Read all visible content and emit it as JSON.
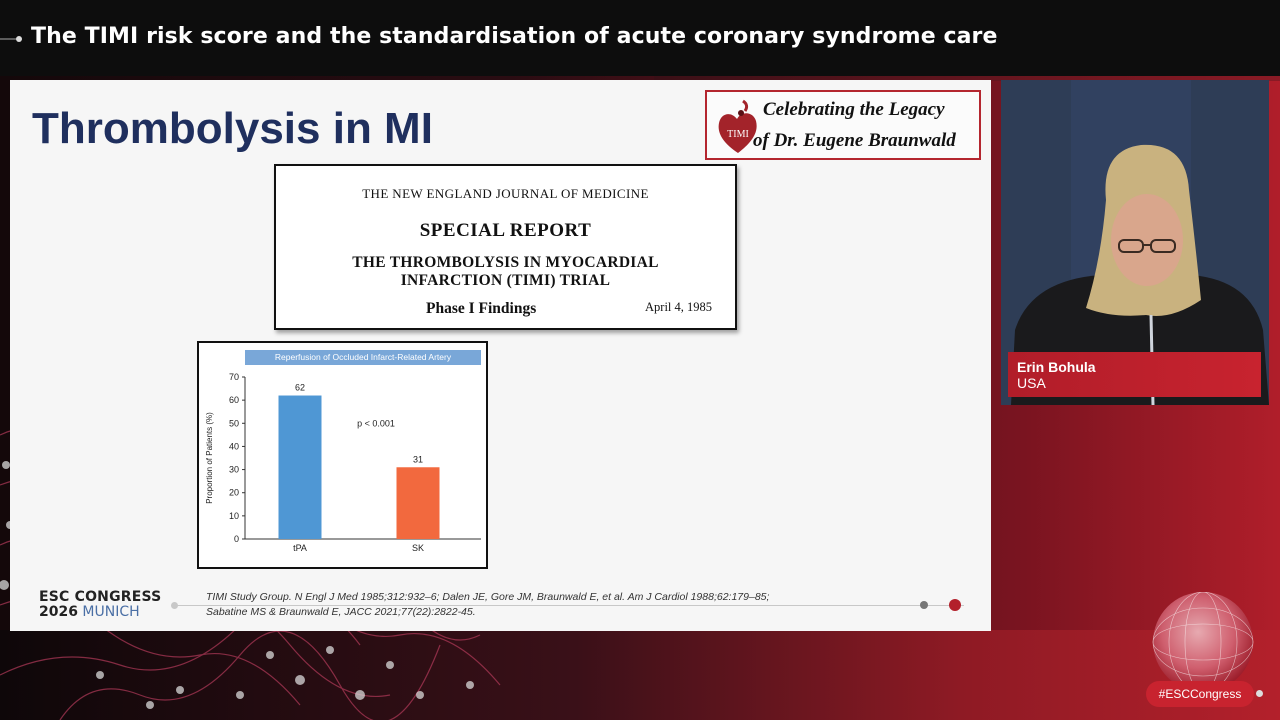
{
  "header": {
    "title": "The TIMI risk score and the standardisation of acute coronary syndrome care"
  },
  "slide": {
    "title": "Thrombolysis in MI",
    "legacy": {
      "logo_text": "TIMI",
      "line1": "Celebrating the Legacy",
      "line2": "of Dr. Eugene Braunwald"
    },
    "nejm": {
      "journal": "THE NEW ENGLAND JOURNAL OF MEDICINE",
      "special_report": "SPECIAL REPORT",
      "trial_line1": "THE THROMBOLYSIS IN MYOCARDIAL",
      "trial_line2": "INFARCTION (TIMI) TRIAL",
      "phase": "Phase I Findings",
      "date": "April 4, 1985"
    },
    "esc_logo": {
      "line1": "ESC CONGRESS",
      "year": "2026",
      "city": "MUNICH"
    },
    "references": {
      "line1": "TIMI Study Group. N Engl J Med 1985;312:932–6; Dalen JE, Gore JM, Braunwald E, et al. Am J Cardiol 1988;62:179–85;",
      "line2": "Sabatine MS & Braunwald E, JACC 2021;77(22):2822-45."
    }
  },
  "chart_data": {
    "type": "bar",
    "title": "Reperfusion of Occluded Infarct-Related Artery",
    "categories": [
      "tPA",
      "SK"
    ],
    "values": [
      62,
      31
    ],
    "data_labels": [
      "62",
      "31"
    ],
    "ylabel": "Proportion of Patients (%)",
    "xlabel": "",
    "ylim": [
      0,
      70
    ],
    "yticks": [
      0,
      10,
      20,
      30,
      40,
      50,
      60,
      70
    ],
    "annotation": "p < 0.001",
    "colors": [
      "#4f97d4",
      "#f2693e"
    ],
    "grid": false
  },
  "speaker": {
    "name": "Erin Bohula",
    "country": "USA"
  },
  "footer": {
    "hashtag": "#ESCCongress"
  },
  "colors": {
    "brand_red": "#b3202b",
    "title_navy": "#1f2f5e"
  }
}
